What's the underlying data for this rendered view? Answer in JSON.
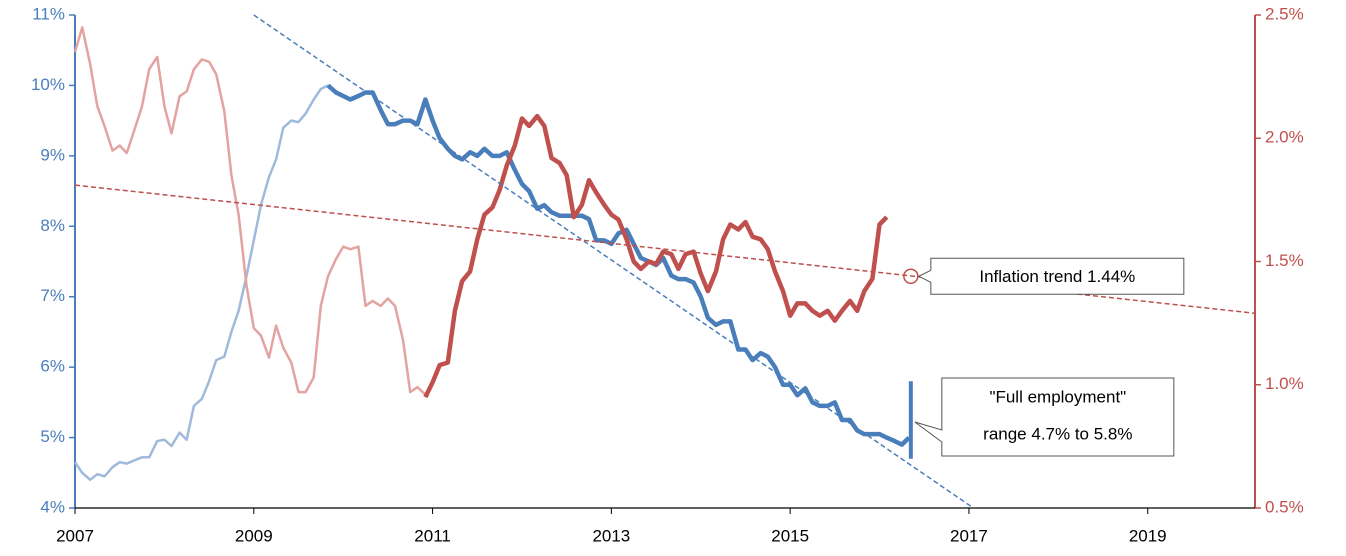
{
  "chart_data": {
    "type": "line",
    "xlim": [
      2007,
      2020.2
    ],
    "xticks": [
      2007,
      2009,
      2011,
      2013,
      2015,
      2017,
      2019
    ],
    "ylim": [
      4,
      11
    ],
    "yticks": [
      {
        "value": 4,
        "label": "4%"
      },
      {
        "value": 5,
        "label": "5%"
      },
      {
        "value": 6,
        "label": "6%"
      },
      {
        "value": 7,
        "label": "7%"
      },
      {
        "value": 8,
        "label": "8%"
      },
      {
        "value": 9,
        "label": "9%"
      },
      {
        "value": 10,
        "label": "10%"
      },
      {
        "value": 11,
        "label": "11%"
      }
    ],
    "y2lim": [
      0.5,
      2.5
    ],
    "y2ticks": [
      {
        "value": 0.5,
        "label": "0.5%"
      },
      {
        "value": 1.0,
        "label": "1.0%"
      },
      {
        "value": 1.5,
        "label": "1.5%"
      },
      {
        "value": 2.0,
        "label": "2.0%"
      },
      {
        "value": 2.5,
        "label": "2.5%"
      }
    ],
    "y_color": "#4a7ebb",
    "y2_color": "#c0504d",
    "series": [
      {
        "color": "#9fbadb",
        "line_width": 2.5,
        "x": [
          2007,
          2007.08,
          2007.17,
          2007.25,
          2007.33,
          2007.42,
          2007.5,
          2007.58,
          2007.67,
          2007.75,
          2007.83,
          2007.92,
          2008,
          2008.08,
          2008.17,
          2008.25,
          2008.33,
          2008.42,
          2008.5,
          2008.58,
          2008.67,
          2008.75,
          2008.83,
          2008.92,
          2009,
          2009.08,
          2009.17,
          2009.25,
          2009.33,
          2009.42,
          2009.5,
          2009.58,
          2009.67,
          2009.75,
          2009.83
        ],
        "values": [
          4.65,
          4.5,
          4.4,
          4.48,
          4.45,
          4.58,
          4.65,
          4.63,
          4.68,
          4.72,
          4.72,
          4.95,
          4.97,
          4.88,
          5.07,
          4.97,
          5.45,
          5.55,
          5.8,
          6.1,
          6.15,
          6.5,
          6.8,
          7.3,
          7.8,
          8.3,
          8.7,
          8.95,
          9.4,
          9.5,
          9.48,
          9.6,
          9.8,
          9.95,
          10.0
        ]
      },
      {
        "color": "#4a7ebb",
        "line_width": 4.5,
        "x": [
          2009.83,
          2009.92,
          2010,
          2010.08,
          2010.17,
          2010.25,
          2010.33,
          2010.42,
          2010.5,
          2010.58,
          2010.67,
          2010.75,
          2010.83,
          2010.92,
          2011,
          2011.08,
          2011.17,
          2011.25,
          2011.33,
          2011.42,
          2011.5,
          2011.58,
          2011.67,
          2011.75,
          2011.83,
          2011.92,
          2012,
          2012.08,
          2012.17,
          2012.25,
          2012.33,
          2012.42,
          2012.5,
          2012.58,
          2012.67,
          2012.75,
          2012.83,
          2012.92,
          2013,
          2013.08,
          2013.17,
          2013.25,
          2013.33,
          2013.42,
          2013.5,
          2013.58,
          2013.67,
          2013.75,
          2013.83,
          2013.92,
          2014,
          2014.08,
          2014.17,
          2014.25,
          2014.33,
          2014.42,
          2014.5,
          2014.58,
          2014.67,
          2014.75,
          2014.83,
          2014.92,
          2015,
          2015.08,
          2015.17,
          2015.25,
          2015.33,
          2015.42,
          2015.5,
          2015.58,
          2015.67,
          2015.75,
          2015.83,
          2015.92,
          2016,
          2016.08,
          2016.17,
          2016.25,
          2016.33
        ],
        "values": [
          10.0,
          9.9,
          9.85,
          9.8,
          9.85,
          9.9,
          9.9,
          9.65,
          9.45,
          9.45,
          9.5,
          9.5,
          9.45,
          9.8,
          9.5,
          9.25,
          9.1,
          9.0,
          8.95,
          9.05,
          9.0,
          9.1,
          9.0,
          9.0,
          9.05,
          8.8,
          8.6,
          8.5,
          8.25,
          8.3,
          8.2,
          8.15,
          8.15,
          8.15,
          8.15,
          8.1,
          7.8,
          7.8,
          7.75,
          7.9,
          7.95,
          7.75,
          7.55,
          7.5,
          7.45,
          7.55,
          7.3,
          7.25,
          7.25,
          7.2,
          7.0,
          6.7,
          6.6,
          6.65,
          6.65,
          6.25,
          6.25,
          6.1,
          6.2,
          6.15,
          6.0,
          5.75,
          5.75,
          5.6,
          5.7,
          5.5,
          5.45,
          5.45,
          5.5,
          5.25,
          5.25,
          5.1,
          5.05,
          5.05,
          5.05,
          5.0,
          4.95,
          4.9,
          5.0
        ]
      },
      {
        "color": "#e3a3a1",
        "line_width": 2.5,
        "axis": "y2",
        "x": [
          2007,
          2007.08,
          2007.17,
          2007.25,
          2007.33,
          2007.42,
          2007.5,
          2007.58,
          2007.67,
          2007.75,
          2007.83,
          2007.92,
          2008,
          2008.08,
          2008.17,
          2008.25,
          2008.33,
          2008.42,
          2008.5,
          2008.58,
          2008.67,
          2008.75,
          2008.83,
          2008.92,
          2009,
          2009.08,
          2009.17,
          2009.25,
          2009.33,
          2009.42,
          2009.5,
          2009.58,
          2009.67,
          2009.75,
          2009.83,
          2009.92,
          2010,
          2010.08,
          2010.17,
          2010.25,
          2010.33,
          2010.42,
          2010.5,
          2010.58,
          2010.67,
          2010.75,
          2010.83,
          2010.92
        ],
        "values": [
          2.35,
          2.45,
          2.3,
          2.13,
          2.05,
          1.95,
          1.97,
          1.94,
          2.04,
          2.13,
          2.28,
          2.33,
          2.13,
          2.02,
          2.17,
          2.19,
          2.28,
          2.32,
          2.31,
          2.26,
          2.11,
          1.85,
          1.69,
          1.4,
          1.23,
          1.2,
          1.11,
          1.24,
          1.15,
          1.09,
          0.97,
          0.97,
          1.03,
          1.32,
          1.44,
          1.51,
          1.56,
          1.55,
          1.56,
          1.32,
          1.34,
          1.32,
          1.35,
          1.32,
          1.18,
          0.97,
          0.99,
          0.96
        ]
      },
      {
        "color": "#c0504d",
        "line_width": 4.5,
        "axis": "y2",
        "x": [
          2010.92,
          2011,
          2011.08,
          2011.17,
          2011.25,
          2011.33,
          2011.42,
          2011.5,
          2011.58,
          2011.67,
          2011.75,
          2011.83,
          2011.92,
          2012,
          2012.08,
          2012.17,
          2012.25,
          2012.33,
          2012.42,
          2012.5,
          2012.58,
          2012.67,
          2012.75,
          2012.83,
          2012.92,
          2013,
          2013.08,
          2013.17,
          2013.25,
          2013.33,
          2013.42,
          2013.5,
          2013.58,
          2013.67,
          2013.75,
          2013.83,
          2013.92,
          2014,
          2014.08,
          2014.17,
          2014.25,
          2014.33,
          2014.42,
          2014.5,
          2014.58,
          2014.67,
          2014.75,
          2014.83,
          2014.92,
          2015,
          2015.08,
          2015.17,
          2015.25,
          2015.33,
          2015.42,
          2015.5,
          2015.58,
          2015.67,
          2015.75,
          2015.83,
          2015.92,
          2016,
          2016.08
        ],
        "values": [
          0.95,
          1.01,
          1.08,
          1.09,
          1.3,
          1.42,
          1.46,
          1.59,
          1.69,
          1.72,
          1.79,
          1.89,
          1.97,
          2.08,
          2.05,
          2.09,
          2.05,
          1.92,
          1.9,
          1.85,
          1.68,
          1.73,
          1.83,
          1.78,
          1.73,
          1.69,
          1.67,
          1.59,
          1.5,
          1.47,
          1.5,
          1.49,
          1.54,
          1.53,
          1.47,
          1.53,
          1.54,
          1.45,
          1.38,
          1.46,
          1.59,
          1.65,
          1.63,
          1.66,
          1.6,
          1.59,
          1.55,
          1.46,
          1.38,
          1.28,
          1.33,
          1.33,
          1.3,
          1.28,
          1.3,
          1.26,
          1.3,
          1.34,
          1.3,
          1.38,
          1.43,
          1.65,
          1.68
        ]
      },
      {
        "color": "#4a7ebb",
        "line_width": 1.5,
        "dash": true,
        "x": [
          2009,
          2017.05
        ],
        "values": [
          11,
          4
        ]
      },
      {
        "color": "#c0504d",
        "line_width": 1.5,
        "dash": true,
        "axis": "y2",
        "x": [
          2007,
          2020.2
        ],
        "values": [
          1.81,
          1.29
        ]
      }
    ],
    "annotations": [
      {
        "text": "Inflation trend 1.44%",
        "x": 2016.35,
        "y": 1.44,
        "axis": "y2",
        "color": "#c0504d"
      },
      {
        "text": [
          "\"Full employment\"",
          "range 4.7% to 5.8%"
        ],
        "x": 2016.35,
        "range": [
          4.7,
          5.8
        ],
        "color": "#4a7ebb"
      }
    ]
  }
}
